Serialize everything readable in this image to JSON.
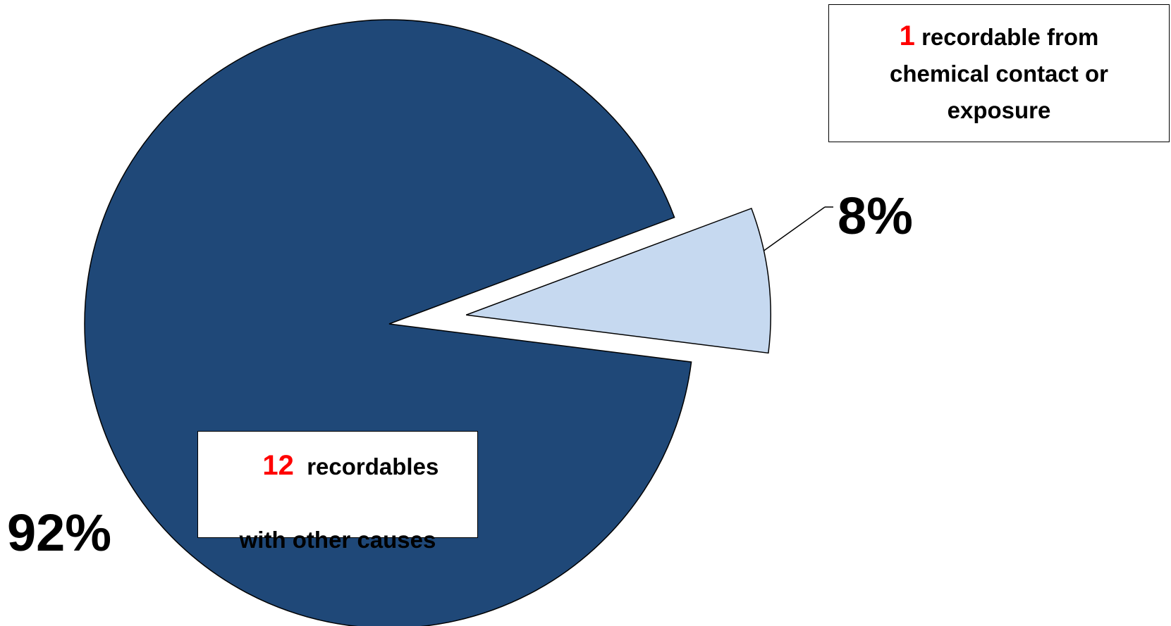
{
  "chart_data": {
    "type": "pie",
    "slices": [
      {
        "count": 1,
        "percent": 8,
        "percent_label": "8%",
        "count_text": "1",
        "description": "recordable from chemical contact or exposure",
        "color": "#c6d9f0",
        "exploded": true
      },
      {
        "count": 12,
        "percent": 92,
        "percent_label": "92%",
        "count_text": "12",
        "description": "recordables with other causes",
        "color": "#1f4878",
        "exploded": false
      }
    ],
    "title": "",
    "legend": "none",
    "count_color": "#ff0000"
  },
  "callouts": {
    "minor_line1_rest": " recordable from",
    "minor_line2": "chemical contact or",
    "minor_line3": "exposure",
    "major_line1_rest": "  recordables",
    "major_line2": "with other causes"
  }
}
